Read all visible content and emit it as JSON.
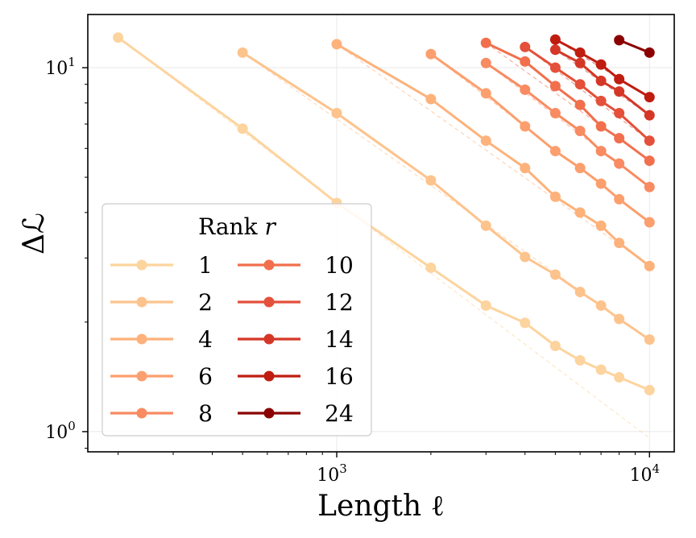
{
  "chart_data": {
    "type": "line",
    "title": "",
    "xlabel": "Length ℓ",
    "ylabel": "Δℒ",
    "xscale": "log",
    "yscale": "log",
    "xlim": [
      160,
      12000
    ],
    "ylim": [
      0.88,
      14
    ],
    "grid": true,
    "legend": {
      "title": "Rank r",
      "placement": "lower-left",
      "columns": 2
    },
    "x_ticks": [
      {
        "value": 1000,
        "base": "10",
        "exp": "3"
      },
      {
        "value": 10000,
        "base": "10",
        "exp": "4"
      }
    ],
    "y_ticks": [
      {
        "value": 1,
        "base": "10",
        "exp": "0"
      },
      {
        "value": 10,
        "base": "10",
        "exp": "1"
      }
    ],
    "series": [
      {
        "name": "1",
        "color": "#fdd49e",
        "x": [
          200,
          500,
          1000,
          2000,
          3000,
          4000,
          5000,
          6000,
          7000,
          8000,
          10000
        ],
        "y": [
          12.1,
          6.8,
          4.25,
          2.82,
          2.22,
          1.99,
          1.72,
          1.57,
          1.48,
          1.41,
          1.3
        ],
        "fit": [
          [
            200,
            12.1
          ],
          [
            10000,
            0.96
          ]
        ]
      },
      {
        "name": "2",
        "color": "#fdc38d",
        "x": [
          500,
          1000,
          2000,
          3000,
          4000,
          5000,
          6000,
          7000,
          8000,
          10000
        ],
        "y": [
          11.0,
          7.5,
          4.9,
          3.68,
          3.02,
          2.7,
          2.42,
          2.22,
          2.04,
          1.79
        ],
        "fit": [
          [
            500,
            11.0
          ],
          [
            10000,
            1.79
          ]
        ]
      },
      {
        "name": "4",
        "color": "#fdb27b",
        "x": [
          1000,
          2000,
          3000,
          4000,
          5000,
          6000,
          7000,
          8000,
          10000
        ],
        "y": [
          11.6,
          8.2,
          6.3,
          5.3,
          4.42,
          4.0,
          3.68,
          3.3,
          2.85
        ],
        "fit": [
          [
            1000,
            11.6
          ],
          [
            10000,
            2.85
          ]
        ]
      },
      {
        "name": "6",
        "color": "#fc9f6e",
        "x": [
          2000,
          3000,
          4000,
          5000,
          6000,
          7000,
          8000,
          10000
        ],
        "y": [
          10.9,
          8.5,
          6.9,
          5.9,
          5.3,
          4.8,
          4.35,
          3.76
        ],
        "fit": [
          [
            2000,
            10.9
          ],
          [
            10000,
            3.76
          ]
        ]
      },
      {
        "name": "8",
        "color": "#f88b61",
        "x": [
          3000,
          4000,
          5000,
          6000,
          7000,
          8000,
          10000
        ],
        "y": [
          10.3,
          8.7,
          7.5,
          6.7,
          5.9,
          5.45,
          4.7
        ],
        "fit": [
          [
            3000,
            10.3
          ],
          [
            10000,
            4.7
          ]
        ]
      },
      {
        "name": "10",
        "color": "#f16f4d",
        "x": [
          3000,
          4000,
          5000,
          6000,
          7000,
          8000,
          10000
        ],
        "y": [
          11.7,
          10.4,
          8.9,
          7.9,
          6.9,
          6.4,
          5.55
        ],
        "fit": [
          [
            3000,
            11.7
          ],
          [
            10000,
            5.55
          ]
        ]
      },
      {
        "name": "12",
        "color": "#e4503a",
        "x": [
          4000,
          5000,
          6000,
          7000,
          8000,
          10000
        ],
        "y": [
          11.4,
          10.0,
          9.0,
          8.1,
          7.5,
          6.3
        ],
        "fit": [
          [
            4000,
            11.4
          ],
          [
            10000,
            6.3
          ]
        ]
      },
      {
        "name": "14",
        "color": "#d43726",
        "x": [
          5000,
          6000,
          7000,
          8000,
          10000
        ],
        "y": [
          11.2,
          10.3,
          9.2,
          8.6,
          7.4
        ],
        "fit": [
          [
            5000,
            11.2
          ],
          [
            10000,
            7.4
          ]
        ]
      },
      {
        "name": "16",
        "color": "#bf1d10",
        "x": [
          5000,
          6000,
          7000,
          8000,
          10000
        ],
        "y": [
          11.95,
          11.0,
          10.2,
          9.3,
          8.3
        ],
        "fit": [
          [
            5000,
            11.95
          ],
          [
            10000,
            8.3
          ]
        ]
      },
      {
        "name": "24",
        "color": "#8b0000",
        "x": [
          8000,
          10000
        ],
        "y": [
          11.9,
          11.0
        ],
        "fit": [
          [
            8000,
            11.9
          ],
          [
            10000,
            11.0
          ]
        ]
      }
    ]
  }
}
